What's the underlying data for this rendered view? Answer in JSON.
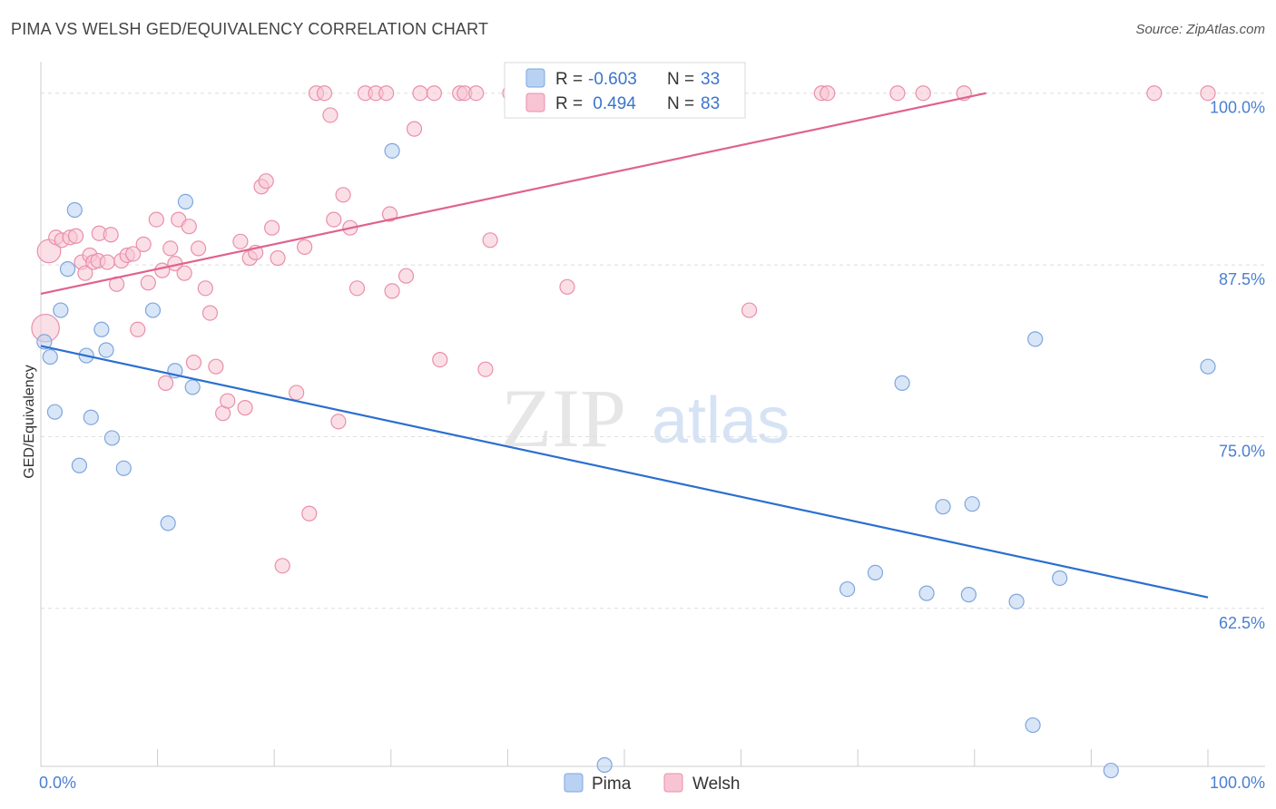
{
  "header": {
    "title": "PIMA VS WELSH GED/EQUIVALENCY CORRELATION CHART",
    "source": "Source: ZipAtlas.com"
  },
  "watermark": {
    "part1": "ZIP",
    "part2": "atlas"
  },
  "legend": {
    "rows": [
      {
        "r_label": "R =",
        "r_value": "-0.603",
        "n_label": "N =",
        "n_value": "33"
      },
      {
        "r_label": "R =",
        "r_value": " 0.494",
        "n_label": "N =",
        "n_value": "83"
      }
    ]
  },
  "bottom_legend": [
    {
      "label": "Pima"
    },
    {
      "label": "Welsh"
    }
  ],
  "colors": {
    "pima_fill": "#b9d1f3",
    "pima_stroke": "#7ea6dc",
    "pima_line": "#2b6fd0",
    "welsh_fill": "#f8c4d3",
    "welsh_stroke": "#ea8fab",
    "welsh_line": "#e0628e",
    "tick": "#4a7fd0",
    "grid": "#dddddd"
  },
  "chart_data": {
    "type": "scatter",
    "title": "PIMA VS WELSH GED/EQUIVALENCY CORRELATION CHART",
    "xlabel": "",
    "ylabel": "GED/Equivalency",
    "xlim": [
      0,
      100
    ],
    "ylim": [
      51,
      101.5
    ],
    "x_tick_labels": [
      "0.0%",
      "100.0%"
    ],
    "y_ticks": [
      62.5,
      75.0,
      87.5,
      100.0
    ],
    "y_tick_labels": [
      "62.5%",
      "75.0%",
      "87.5%",
      "100.0%"
    ],
    "grid": true,
    "legend_position": "top-center",
    "series": [
      {
        "name": "Pima",
        "r": -0.603,
        "n": 33,
        "trend": {
          "x": [
            0,
            100
          ],
          "y": [
            81.6,
            63.3
          ]
        },
        "points": [
          {
            "x": 0.3,
            "y": 81.9
          },
          {
            "x": 0.8,
            "y": 80.8
          },
          {
            "x": 1.2,
            "y": 76.8
          },
          {
            "x": 1.7,
            "y": 84.2
          },
          {
            "x": 2.3,
            "y": 87.2
          },
          {
            "x": 2.9,
            "y": 91.5
          },
          {
            "x": 3.3,
            "y": 72.9
          },
          {
            "x": 3.9,
            "y": 80.9
          },
          {
            "x": 4.3,
            "y": 76.4
          },
          {
            "x": 5.2,
            "y": 82.8
          },
          {
            "x": 5.6,
            "y": 81.3
          },
          {
            "x": 6.1,
            "y": 74.9
          },
          {
            "x": 7.1,
            "y": 72.7
          },
          {
            "x": 9.6,
            "y": 84.2
          },
          {
            "x": 10.9,
            "y": 68.7
          },
          {
            "x": 11.5,
            "y": 79.8
          },
          {
            "x": 12.4,
            "y": 92.1
          },
          {
            "x": 13.0,
            "y": 78.6
          },
          {
            "x": 30.1,
            "y": 95.8
          },
          {
            "x": 48.3,
            "y": 51.1
          },
          {
            "x": 69.1,
            "y": 63.9
          },
          {
            "x": 71.5,
            "y": 65.1
          },
          {
            "x": 73.8,
            "y": 78.9
          },
          {
            "x": 75.9,
            "y": 63.6
          },
          {
            "x": 77.3,
            "y": 69.9
          },
          {
            "x": 79.5,
            "y": 63.5
          },
          {
            "x": 79.8,
            "y": 70.1
          },
          {
            "x": 83.6,
            "y": 63.0
          },
          {
            "x": 85.0,
            "y": 54.0
          },
          {
            "x": 85.2,
            "y": 82.1
          },
          {
            "x": 87.3,
            "y": 64.7
          },
          {
            "x": 91.7,
            "y": 50.7
          },
          {
            "x": 100.0,
            "y": 80.1
          }
        ]
      },
      {
        "name": "Welsh",
        "r": 0.494,
        "n": 83,
        "trend": {
          "x": [
            0,
            81
          ],
          "y": [
            85.4,
            100.0
          ]
        },
        "points": [
          {
            "x": 0.7,
            "y": 88.5,
            "s": 1.6
          },
          {
            "x": 0.4,
            "y": 82.9,
            "s": 1.9
          },
          {
            "x": 1.3,
            "y": 89.5
          },
          {
            "x": 1.8,
            "y": 89.3
          },
          {
            "x": 2.5,
            "y": 89.5
          },
          {
            "x": 3.0,
            "y": 89.6
          },
          {
            "x": 3.5,
            "y": 87.7
          },
          {
            "x": 3.8,
            "y": 86.9
          },
          {
            "x": 4.2,
            "y": 88.2
          },
          {
            "x": 4.5,
            "y": 87.7
          },
          {
            "x": 4.9,
            "y": 87.8
          },
          {
            "x": 5.0,
            "y": 89.8
          },
          {
            "x": 5.7,
            "y": 87.7
          },
          {
            "x": 6.0,
            "y": 89.7
          },
          {
            "x": 6.5,
            "y": 86.1
          },
          {
            "x": 6.9,
            "y": 87.8
          },
          {
            "x": 7.4,
            "y": 88.2
          },
          {
            "x": 7.9,
            "y": 88.3
          },
          {
            "x": 8.3,
            "y": 82.8
          },
          {
            "x": 8.8,
            "y": 89.0
          },
          {
            "x": 9.2,
            "y": 86.2
          },
          {
            "x": 9.9,
            "y": 90.8
          },
          {
            "x": 10.4,
            "y": 87.1
          },
          {
            "x": 10.7,
            "y": 78.9
          },
          {
            "x": 11.1,
            "y": 88.7
          },
          {
            "x": 11.5,
            "y": 87.6
          },
          {
            "x": 11.8,
            "y": 90.8
          },
          {
            "x": 12.3,
            "y": 86.9
          },
          {
            "x": 12.7,
            "y": 90.3
          },
          {
            "x": 13.1,
            "y": 80.4
          },
          {
            "x": 13.5,
            "y": 88.7
          },
          {
            "x": 14.1,
            "y": 85.8
          },
          {
            "x": 14.5,
            "y": 84.0
          },
          {
            "x": 15.0,
            "y": 80.1
          },
          {
            "x": 15.6,
            "y": 76.7
          },
          {
            "x": 16.0,
            "y": 77.6
          },
          {
            "x": 17.1,
            "y": 89.2
          },
          {
            "x": 17.5,
            "y": 77.1
          },
          {
            "x": 17.9,
            "y": 88.0
          },
          {
            "x": 18.4,
            "y": 88.4
          },
          {
            "x": 18.9,
            "y": 93.2
          },
          {
            "x": 19.3,
            "y": 93.6
          },
          {
            "x": 19.8,
            "y": 90.2
          },
          {
            "x": 20.3,
            "y": 88.0
          },
          {
            "x": 20.7,
            "y": 65.6
          },
          {
            "x": 21.9,
            "y": 78.2
          },
          {
            "x": 22.6,
            "y": 88.8
          },
          {
            "x": 23.0,
            "y": 69.4
          },
          {
            "x": 23.6,
            "y": 100.0
          },
          {
            "x": 24.3,
            "y": 100.0
          },
          {
            "x": 24.8,
            "y": 98.4
          },
          {
            "x": 25.1,
            "y": 90.8
          },
          {
            "x": 25.5,
            "y": 76.1
          },
          {
            "x": 25.9,
            "y": 92.6
          },
          {
            "x": 26.5,
            "y": 90.2
          },
          {
            "x": 27.1,
            "y": 85.8
          },
          {
            "x": 27.8,
            "y": 100.0
          },
          {
            "x": 28.7,
            "y": 100.0
          },
          {
            "x": 29.6,
            "y": 100.0
          },
          {
            "x": 29.9,
            "y": 91.2
          },
          {
            "x": 30.1,
            "y": 85.6
          },
          {
            "x": 31.3,
            "y": 86.7
          },
          {
            "x": 32.0,
            "y": 97.4
          },
          {
            "x": 32.5,
            "y": 100.0
          },
          {
            "x": 33.7,
            "y": 100.0
          },
          {
            "x": 34.2,
            "y": 80.6
          },
          {
            "x": 35.9,
            "y": 100.0
          },
          {
            "x": 36.3,
            "y": 100.0
          },
          {
            "x": 37.3,
            "y": 100.0
          },
          {
            "x": 38.1,
            "y": 79.9
          },
          {
            "x": 38.5,
            "y": 89.3
          },
          {
            "x": 40.2,
            "y": 100.0
          },
          {
            "x": 41.7,
            "y": 100.0
          },
          {
            "x": 45.1,
            "y": 85.9
          },
          {
            "x": 55.7,
            "y": 100.0
          },
          {
            "x": 60.7,
            "y": 84.2
          },
          {
            "x": 66.9,
            "y": 100.0
          },
          {
            "x": 67.4,
            "y": 100.0
          },
          {
            "x": 73.4,
            "y": 100.0
          },
          {
            "x": 75.6,
            "y": 100.0
          },
          {
            "x": 79.1,
            "y": 100.0
          },
          {
            "x": 95.4,
            "y": 100.0
          },
          {
            "x": 100.0,
            "y": 100.0
          }
        ]
      }
    ]
  }
}
